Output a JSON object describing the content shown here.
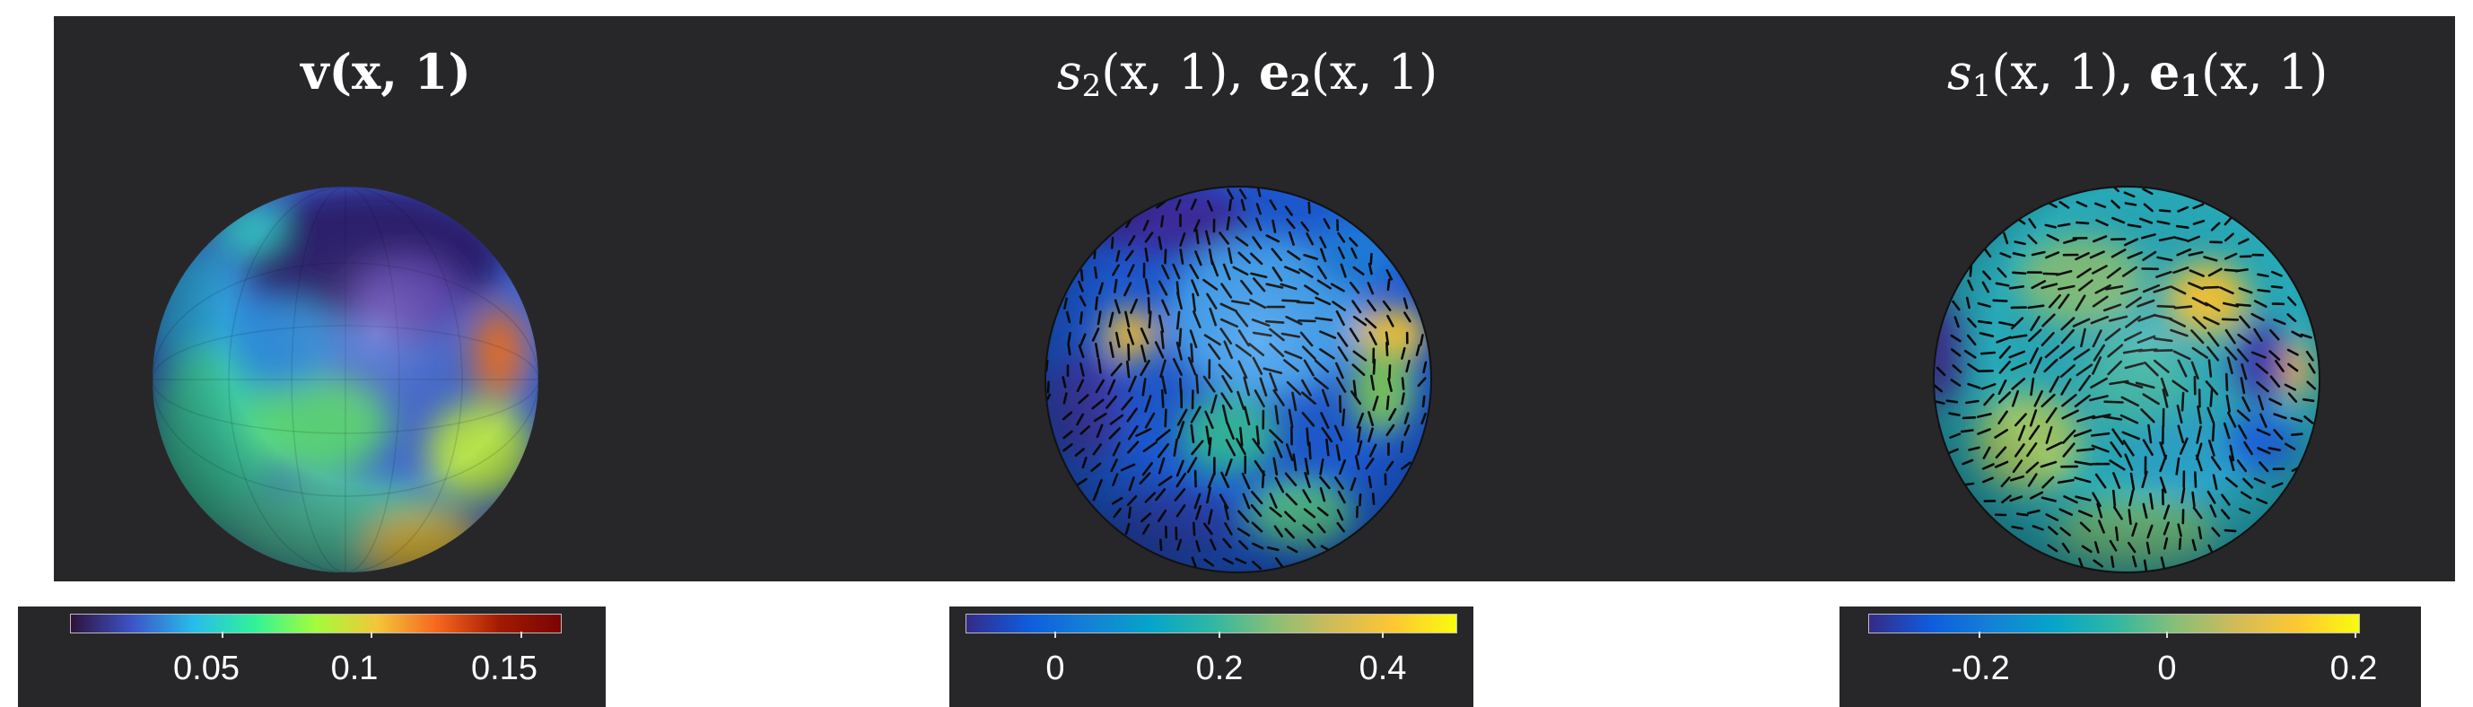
{
  "panels": [
    {
      "title_main": "v",
      "title_rest": "(x, 1)",
      "colorbar": {
        "colormap": "jet",
        "ticks": [
          "0.05",
          "0.1",
          "0.15"
        ]
      }
    },
    {
      "title_sym": "s",
      "title_sub": "2",
      "title_mid": "(x, 1), ",
      "title_vec": "e",
      "title_vec_sub": "2",
      "title_end": "(x, 1)",
      "colorbar": {
        "colormap": "parula",
        "ticks": [
          "0",
          "0.2",
          "0.4"
        ]
      }
    },
    {
      "title_sym": "s",
      "title_sub": "1",
      "title_mid": "(x, 1), ",
      "title_vec": "e",
      "title_vec_sub": "1",
      "title_end": "(x, 1)",
      "colorbar": {
        "colormap": "parula",
        "ticks": [
          "-0.2",
          "0",
          "0.2"
        ]
      }
    }
  ],
  "colors": {
    "panel_background": "#27272a",
    "jet": [
      "#30123b",
      "#3c54c8",
      "#28bceb",
      "#31f299",
      "#a4fc3c",
      "#f3c63a",
      "#f6641e",
      "#a11b02",
      "#7a0403"
    ],
    "parula": [
      "#352a87",
      "#0f5cdd",
      "#1481d6",
      "#06a4ca",
      "#2eb7a4",
      "#87bf77",
      "#d1bb59",
      "#fec832",
      "#f9fb0e"
    ]
  }
}
